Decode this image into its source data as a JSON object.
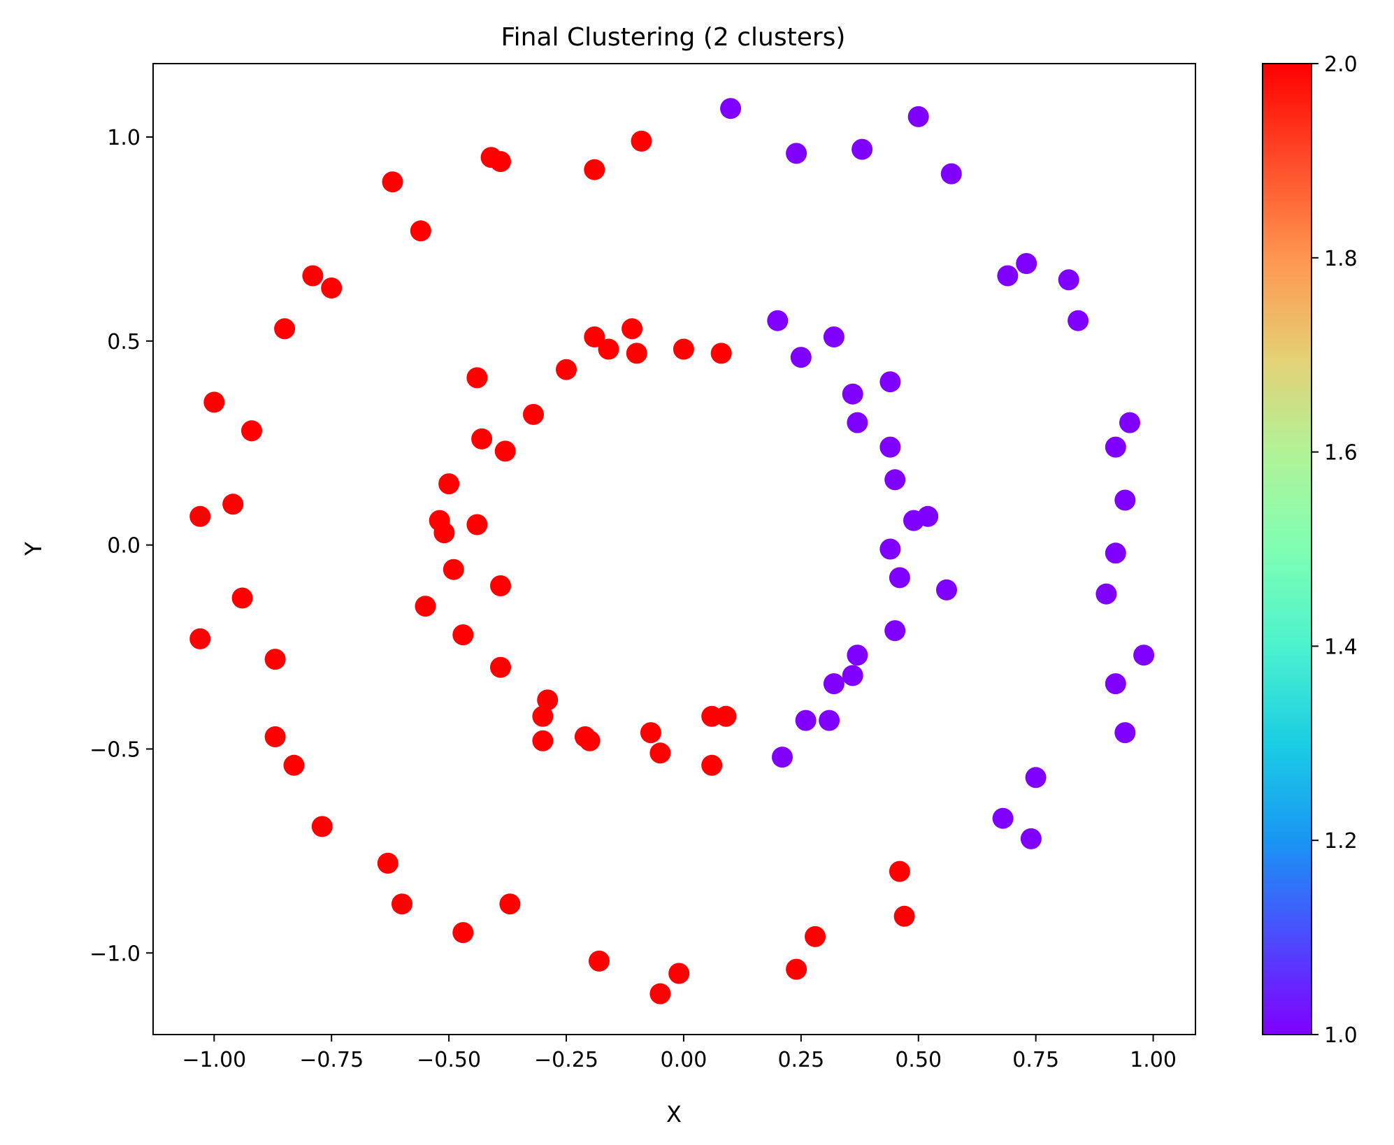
{
  "chart_data": {
    "type": "scatter",
    "title": "Final Clustering (2 clusters)",
    "xlabel": "X",
    "ylabel": "Y",
    "xlim": [
      -1.13,
      1.09
    ],
    "ylim": [
      -1.2,
      1.18
    ],
    "xticks": [
      -1.0,
      -0.75,
      -0.5,
      -0.25,
      0.0,
      0.25,
      0.5,
      0.75,
      1.0
    ],
    "xtick_labels": [
      "−1.00",
      "−0.75",
      "−0.50",
      "−0.25",
      "0.00",
      "0.25",
      "0.50",
      "0.75",
      "1.00"
    ],
    "yticks": [
      -1.0,
      -0.5,
      0.0,
      0.5,
      1.0
    ],
    "ytick_labels": [
      "−1.0",
      "−0.5",
      "0.0",
      "0.5",
      "1.0"
    ],
    "grid": false,
    "colorbar": {
      "colormap": "rainbow",
      "range": [
        1.0,
        2.0
      ],
      "ticks": [
        1.0,
        1.2,
        1.4,
        1.6,
        1.8,
        2.0
      ],
      "tick_labels": [
        "1.0",
        "1.2",
        "1.4",
        "1.6",
        "1.8",
        "2.0"
      ],
      "gradient_colors": [
        "#8000ff",
        "#4c4bfd",
        "#1996f3",
        "#1acee3",
        "#4cf2ce",
        "#7ffeb3",
        "#b2f296",
        "#e6ce73",
        "#ff964f",
        "#ff4b28",
        "#ff0000"
      ]
    },
    "series": [
      {
        "cluster": 2,
        "color": "#ff0000",
        "points": [
          [
            -0.09,
            0.99
          ],
          [
            -0.19,
            0.92
          ],
          [
            -0.39,
            0.94
          ],
          [
            -0.41,
            0.95
          ],
          [
            -0.62,
            0.89
          ],
          [
            -0.56,
            0.77
          ],
          [
            -0.79,
            0.66
          ],
          [
            -0.75,
            0.63
          ],
          [
            -0.85,
            0.53
          ],
          [
            -1.0,
            0.35
          ],
          [
            -0.92,
            0.28
          ],
          [
            -1.03,
            0.07
          ],
          [
            -0.96,
            0.1
          ],
          [
            -0.94,
            -0.13
          ],
          [
            -1.03,
            -0.23
          ],
          [
            -0.87,
            -0.28
          ],
          [
            -0.87,
            -0.47
          ],
          [
            -0.83,
            -0.54
          ],
          [
            -0.77,
            -0.69
          ],
          [
            -0.63,
            -0.78
          ],
          [
            -0.6,
            -0.88
          ],
          [
            -0.47,
            -0.95
          ],
          [
            -0.37,
            -0.88
          ],
          [
            -0.18,
            -1.02
          ],
          [
            -0.05,
            -1.1
          ],
          [
            -0.01,
            -1.05
          ],
          [
            0.24,
            -1.04
          ],
          [
            0.28,
            -0.96
          ],
          [
            0.47,
            -0.91
          ],
          [
            0.46,
            -0.8
          ],
          [
            -0.19,
            0.51
          ],
          [
            -0.11,
            0.53
          ],
          [
            -0.16,
            0.48
          ],
          [
            -0.1,
            0.47
          ],
          [
            0.0,
            0.48
          ],
          [
            0.08,
            0.47
          ],
          [
            -0.25,
            0.43
          ],
          [
            -0.44,
            0.41
          ],
          [
            -0.32,
            0.32
          ],
          [
            -0.43,
            0.26
          ],
          [
            -0.38,
            0.23
          ],
          [
            -0.5,
            0.15
          ],
          [
            -0.52,
            0.06
          ],
          [
            -0.51,
            0.03
          ],
          [
            -0.44,
            0.05
          ],
          [
            -0.49,
            -0.06
          ],
          [
            -0.39,
            -0.1
          ],
          [
            -0.55,
            -0.15
          ],
          [
            -0.47,
            -0.22
          ],
          [
            -0.39,
            -0.3
          ],
          [
            -0.29,
            -0.38
          ],
          [
            -0.3,
            -0.42
          ],
          [
            -0.3,
            -0.48
          ],
          [
            -0.21,
            -0.47
          ],
          [
            -0.2,
            -0.48
          ],
          [
            -0.07,
            -0.46
          ],
          [
            -0.05,
            -0.51
          ],
          [
            0.06,
            -0.42
          ],
          [
            0.09,
            -0.42
          ],
          [
            0.06,
            -0.54
          ]
        ]
      },
      {
        "cluster": 1,
        "color": "#8000ff",
        "points": [
          [
            0.1,
            1.07
          ],
          [
            0.24,
            0.96
          ],
          [
            0.38,
            0.97
          ],
          [
            0.5,
            1.05
          ],
          [
            0.57,
            0.91
          ],
          [
            0.69,
            0.66
          ],
          [
            0.73,
            0.69
          ],
          [
            0.82,
            0.65
          ],
          [
            0.84,
            0.55
          ],
          [
            0.95,
            0.3
          ],
          [
            0.92,
            0.24
          ],
          [
            0.94,
            0.11
          ],
          [
            0.92,
            -0.02
          ],
          [
            0.9,
            -0.12
          ],
          [
            0.98,
            -0.27
          ],
          [
            0.92,
            -0.34
          ],
          [
            0.94,
            -0.46
          ],
          [
            0.75,
            -0.57
          ],
          [
            0.68,
            -0.67
          ],
          [
            0.74,
            -0.72
          ],
          [
            0.2,
            0.55
          ],
          [
            0.32,
            0.51
          ],
          [
            0.25,
            0.46
          ],
          [
            0.44,
            0.4
          ],
          [
            0.36,
            0.37
          ],
          [
            0.37,
            0.3
          ],
          [
            0.44,
            0.24
          ],
          [
            0.45,
            0.16
          ],
          [
            0.49,
            0.06
          ],
          [
            0.52,
            0.07
          ],
          [
            0.44,
            -0.01
          ],
          [
            0.46,
            -0.08
          ],
          [
            0.56,
            -0.11
          ],
          [
            0.45,
            -0.21
          ],
          [
            0.37,
            -0.27
          ],
          [
            0.36,
            -0.32
          ],
          [
            0.32,
            -0.34
          ],
          [
            0.26,
            -0.43
          ],
          [
            0.31,
            -0.43
          ],
          [
            0.21,
            -0.52
          ]
        ]
      }
    ]
  }
}
